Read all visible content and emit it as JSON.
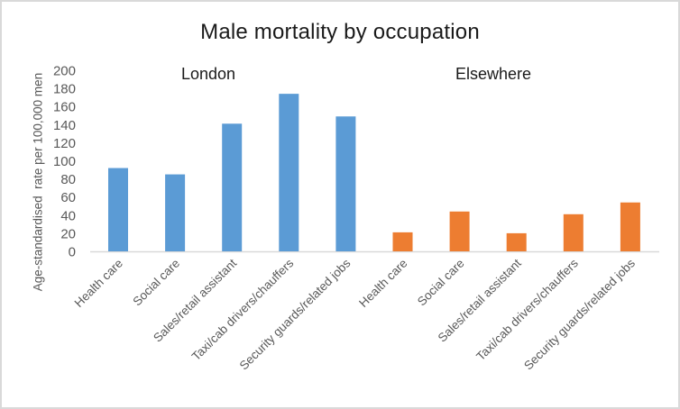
{
  "chart_data": {
    "type": "bar",
    "title": "Male mortality by occupation",
    "xlabel": "",
    "ylabel": "Age-standardised  rate per 100,000 men",
    "ylim": [
      0,
      200
    ],
    "yticks": [
      0,
      20,
      40,
      60,
      80,
      100,
      120,
      140,
      160,
      180,
      200
    ],
    "grid": false,
    "legend": null,
    "groups": [
      {
        "name": "London",
        "color": "#5b9bd5",
        "categories": [
          "Health care",
          "Social care",
          "Sales/retail assistant",
          "Taxi/cab drivers/chauffers",
          "Security guards/related jobs"
        ],
        "values": [
          92,
          85,
          141,
          174,
          149
        ]
      },
      {
        "name": "Elsewhere",
        "color": "#ed7d31",
        "categories": [
          "Health care",
          "Social care",
          "Sales/retail assistant",
          "Taxi/cab drivers/chauffers",
          "Security guards/related jobs"
        ],
        "values": [
          21,
          44,
          20,
          41,
          54
        ]
      }
    ],
    "categories": [
      "Health care",
      "Social care",
      "Sales/retail assistant",
      "Taxi/cab drivers/chauffers",
      "Security guards/related jobs",
      "Health care",
      "Social care",
      "Sales/retail assistant",
      "Taxi/cab drivers/chauffers",
      "Security guards/related jobs"
    ],
    "series": [
      {
        "name": "London",
        "values": [
          92,
          85,
          141,
          174,
          149,
          null,
          null,
          null,
          null,
          null
        ]
      },
      {
        "name": "Elsewhere",
        "values": [
          null,
          null,
          null,
          null,
          null,
          21,
          44,
          20,
          41,
          54
        ]
      }
    ]
  },
  "colors": {
    "london": "#5b9bd5",
    "elsewhere": "#ed7d31",
    "axis": "#d9d9d9",
    "text": "#595959"
  }
}
